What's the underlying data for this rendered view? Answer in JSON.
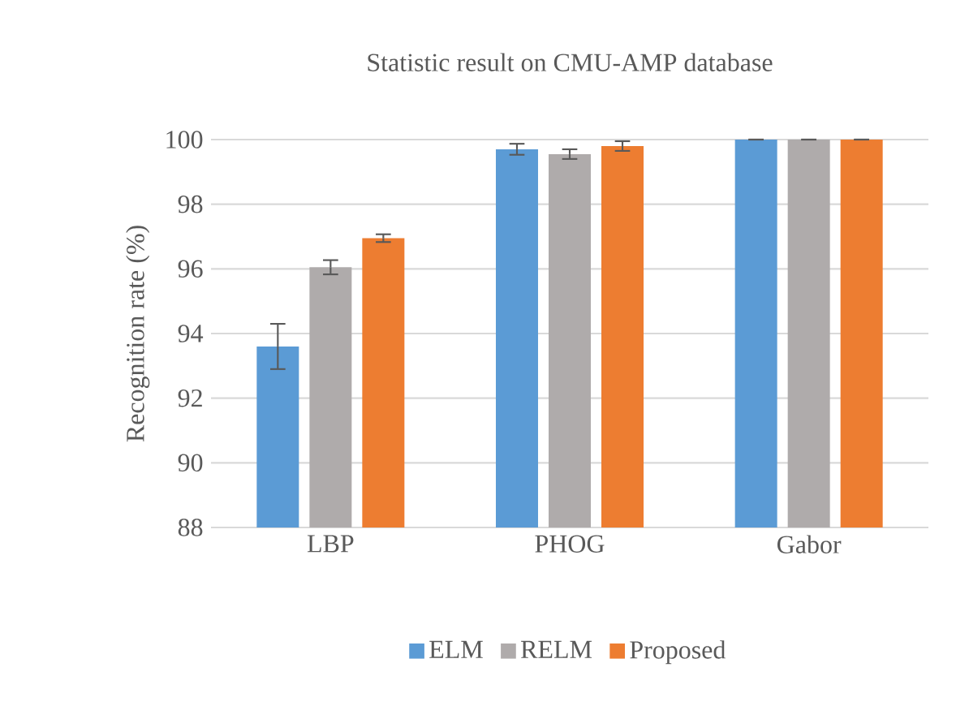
{
  "chart_data": {
    "type": "bar",
    "title": "Statistic result on CMU-AMP database",
    "ylabel": "Recognition rate (%)",
    "categories": [
      "LBP",
      "PHOG",
      "Gabor"
    ],
    "ylim": [
      88,
      100
    ],
    "yticks": [
      88,
      90,
      92,
      94,
      96,
      98,
      100
    ],
    "grid": "y",
    "legend": "bottom",
    "series": [
      {
        "name": "ELM",
        "color": "#5b9bd5",
        "values": [
          93.6,
          99.7,
          100
        ],
        "errors": [
          0.7,
          0.17,
          0
        ]
      },
      {
        "name": "RELM",
        "color": "#afabab",
        "values": [
          96.05,
          99.55,
          100
        ],
        "errors": [
          0.22,
          0.15,
          0
        ]
      },
      {
        "name": "Proposed",
        "color": "#ed7d31",
        "values": [
          96.95,
          99.8,
          100
        ],
        "errors": [
          0.12,
          0.15,
          0
        ]
      }
    ]
  }
}
